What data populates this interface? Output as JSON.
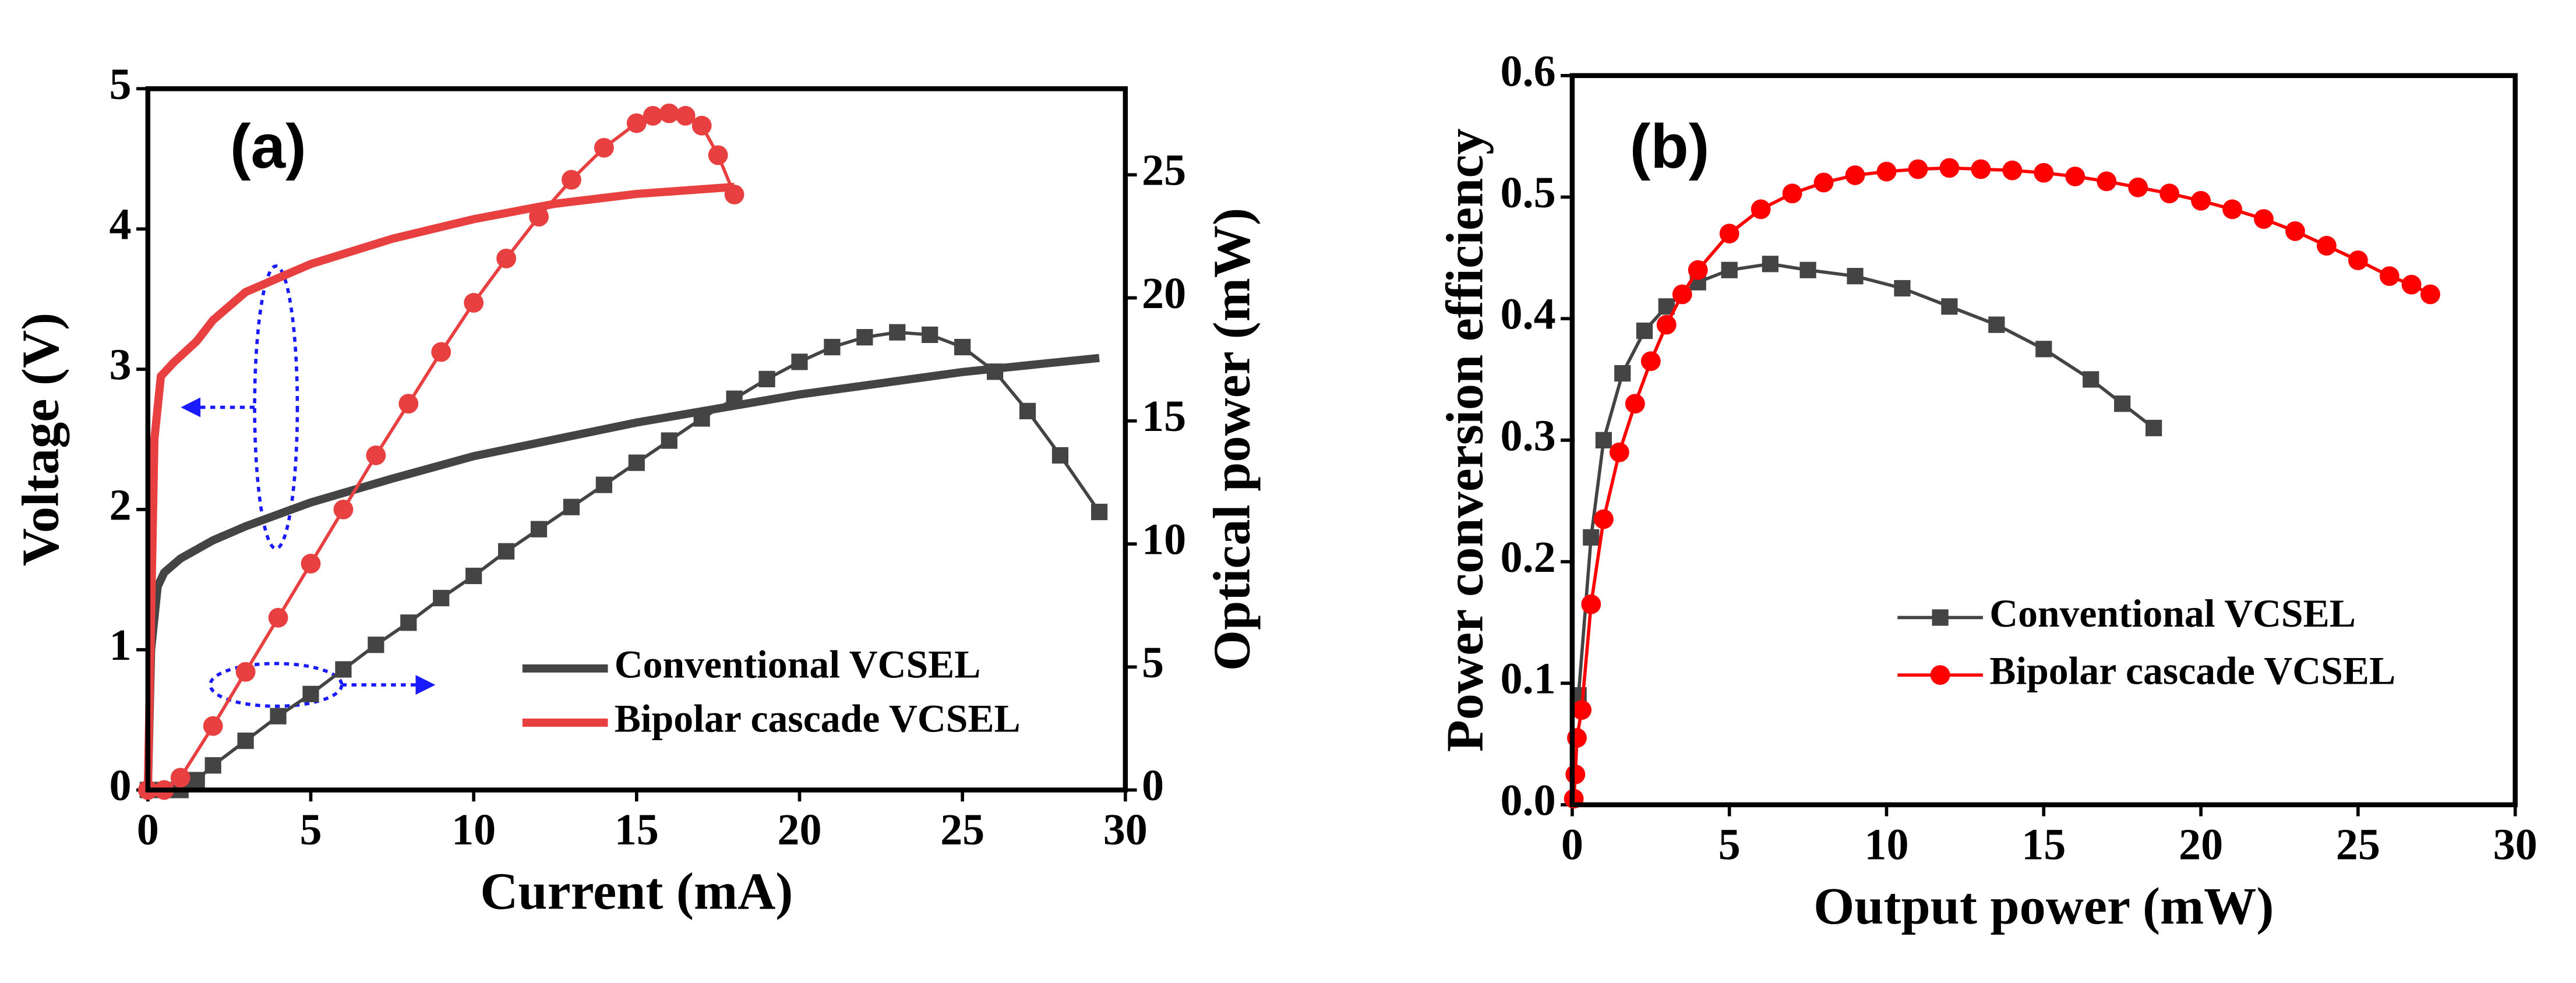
{
  "chart_data": [
    {
      "type": "line",
      "annotation": "(a)",
      "x_label": "Current (mA)",
      "y_label": "Voltage (V)",
      "y2_label": "Optical power (mW)",
      "xlim": [
        0,
        30
      ],
      "xticks": [
        0,
        5,
        10,
        15,
        20,
        25,
        30
      ],
      "ylim": [
        0,
        5
      ],
      "yticks": [
        0,
        1,
        2,
        3,
        4,
        5
      ],
      "y2lim": [
        0,
        28.5
      ],
      "y2ticks": [
        0,
        5,
        10,
        15,
        20,
        25
      ],
      "series": [
        {
          "name": "Conventional VCSEL",
          "color": "#444444",
          "marker": "none",
          "axis": "y",
          "x": [
            0,
            0.1,
            0.3,
            0.5,
            1,
            2,
            3,
            5,
            7.5,
            10,
            12.5,
            15,
            17.5,
            20,
            22.5,
            25,
            27.5,
            29.2
          ],
          "values": [
            0,
            1.0,
            1.45,
            1.55,
            1.65,
            1.78,
            1.88,
            2.05,
            2.22,
            2.38,
            2.5,
            2.62,
            2.72,
            2.82,
            2.9,
            2.98,
            3.04,
            3.08
          ]
        },
        {
          "name": "Bipolar cascade VCSEL",
          "color": "#e84040",
          "marker": "none",
          "axis": "y",
          "x": [
            0,
            0.2,
            0.4,
            0.8,
            1.5,
            2,
            3,
            5,
            7.5,
            10,
            12.5,
            15,
            18
          ],
          "values": [
            0,
            2.5,
            2.95,
            3.05,
            3.2,
            3.35,
            3.55,
            3.75,
            3.93,
            4.07,
            4.18,
            4.25,
            4.3
          ]
        },
        {
          "color": "#444444",
          "marker": "square",
          "axis": "y2",
          "x": [
            0,
            0.5,
            1,
            1.5,
            2,
            3,
            4,
            5,
            6,
            7,
            8,
            9,
            10,
            11,
            12,
            13,
            14,
            15,
            16,
            17,
            18,
            19,
            20,
            21,
            22,
            23,
            24,
            25,
            26,
            27,
            28,
            29.2
          ],
          "values": [
            0,
            0,
            0,
            0.4,
            1.0,
            2.0,
            3.0,
            3.9,
            4.9,
            5.9,
            6.8,
            7.8,
            8.7,
            9.7,
            10.6,
            11.5,
            12.4,
            13.3,
            14.2,
            15.1,
            15.9,
            16.7,
            17.4,
            18.0,
            18.4,
            18.6,
            18.5,
            18.0,
            17.0,
            15.4,
            13.6,
            11.3
          ]
        },
        {
          "color": "#e84040",
          "marker": "circle",
          "axis": "y2",
          "x": [
            0,
            0.5,
            1,
            2,
            3,
            4,
            5,
            6,
            7,
            8,
            9,
            10,
            11,
            12,
            13,
            14,
            15,
            15.5,
            16,
            16.5,
            17,
            17.5,
            18
          ],
          "values": [
            0,
            0,
            0.5,
            2.6,
            4.8,
            7.0,
            9.2,
            11.4,
            13.6,
            15.7,
            17.8,
            19.8,
            21.6,
            23.3,
            24.8,
            26.1,
            27.1,
            27.4,
            27.5,
            27.4,
            27.0,
            25.8,
            24.2
          ]
        }
      ]
    },
    {
      "type": "line",
      "annotation": "(b)",
      "x_label": "Output power (mW)",
      "y_label": "Power conversion efficiency",
      "xlim": [
        0,
        30
      ],
      "xticks": [
        0,
        5,
        10,
        15,
        20,
        25,
        30
      ],
      "ylim": [
        0,
        0.6
      ],
      "yticks": [
        {
          "value": 0,
          "label": "0.0"
        },
        0.1,
        0.2,
        0.3,
        0.4,
        0.5,
        0.6
      ],
      "series": [
        {
          "name": "Conventional VCSEL",
          "color": "#444444",
          "marker": "square",
          "axis": "y",
          "x": [
            0.2,
            0.6,
            1.0,
            1.6,
            2.3,
            3,
            4,
            5,
            6.3,
            7.5,
            9,
            10.5,
            12,
            13.5,
            15,
            16.5,
            17.5,
            18.5
          ],
          "values": [
            0.09,
            0.22,
            0.3,
            0.355,
            0.39,
            0.41,
            0.43,
            0.44,
            0.445,
            0.44,
            0.435,
            0.425,
            0.41,
            0.395,
            0.375,
            0.35,
            0.33,
            0.31
          ]
        },
        {
          "name": "Bipolar cascade VCSEL",
          "color": "#ff0000",
          "marker": "circle",
          "axis": "y",
          "x": [
            0.05,
            0.1,
            0.15,
            0.3,
            0.6,
            1.0,
            1.5,
            2,
            2.5,
            3,
            3.5,
            4,
            5,
            6,
            7,
            8,
            9,
            10,
            11,
            12,
            13,
            14,
            15,
            16,
            17,
            18,
            19,
            20,
            21,
            22,
            23,
            24,
            25,
            26,
            26.7,
            27.3
          ],
          "values": [
            0.005,
            0.025,
            0.055,
            0.078,
            0.165,
            0.235,
            0.29,
            0.33,
            0.365,
            0.395,
            0.42,
            0.44,
            0.47,
            0.49,
            0.503,
            0.512,
            0.518,
            0.521,
            0.523,
            0.524,
            0.523,
            0.522,
            0.52,
            0.517,
            0.513,
            0.508,
            0.503,
            0.497,
            0.49,
            0.482,
            0.472,
            0.46,
            0.448,
            0.435,
            0.428,
            0.42
          ]
        }
      ]
    }
  ]
}
